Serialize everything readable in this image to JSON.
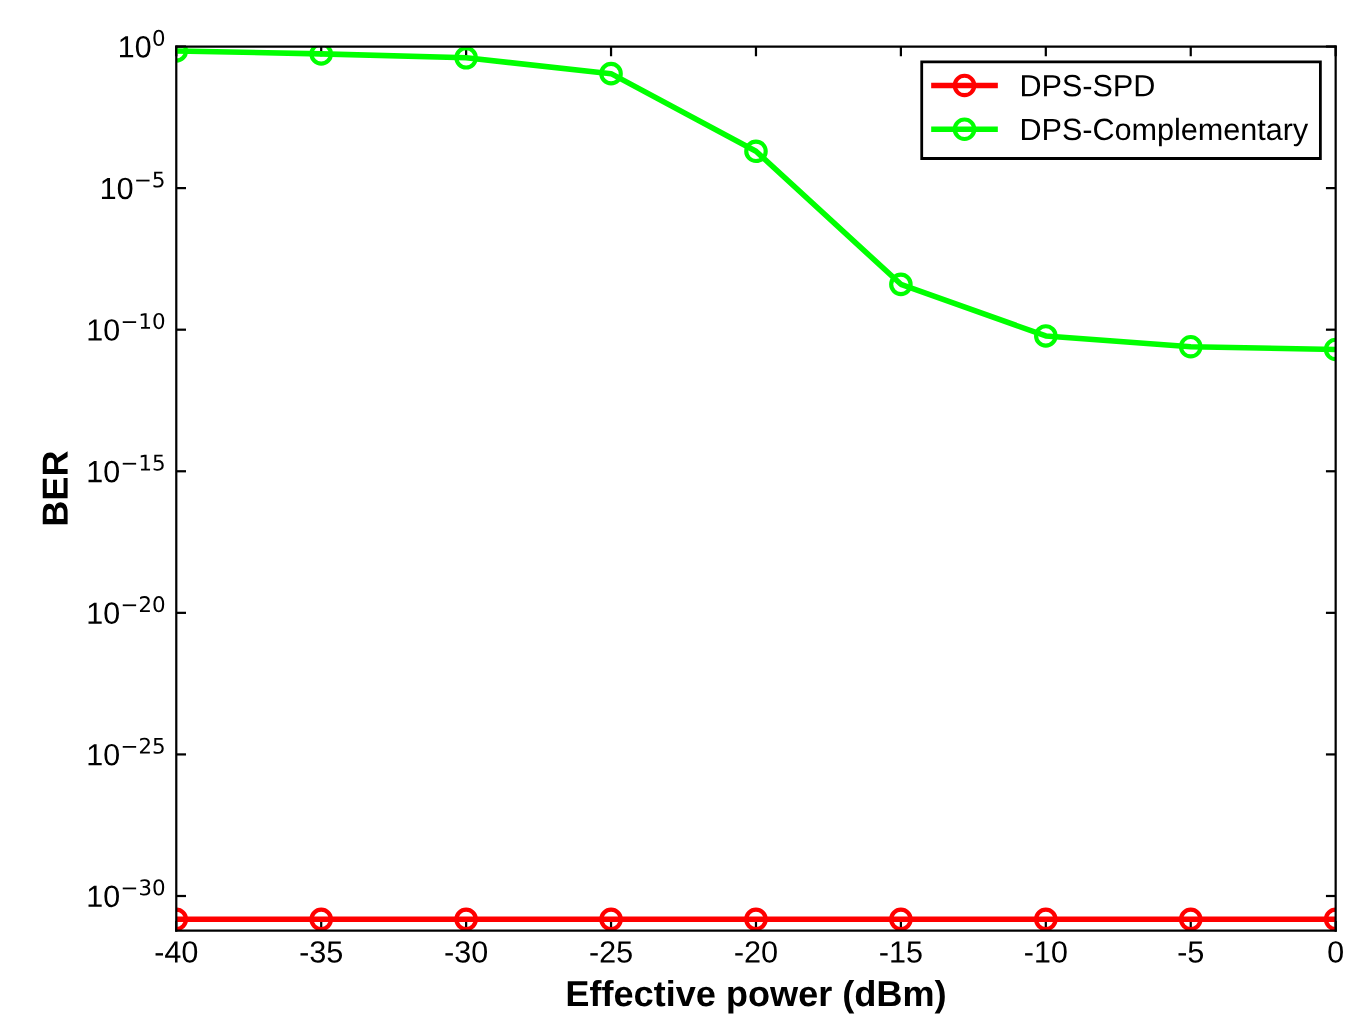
{
  "chart_data": {
    "type": "line",
    "xlabel": "Effective power (dBm)",
    "ylabel": "BER",
    "x": [
      -40,
      -35,
      -30,
      -25,
      -20,
      -15,
      -10,
      -5,
      0
    ],
    "series": [
      {
        "name": "DPS-SPD",
        "color": "#ff0000",
        "values": [
          1.5e-31,
          1.5e-31,
          1.5e-31,
          1.5e-31,
          1.5e-31,
          1.5e-31,
          1.5e-31,
          1.5e-31,
          1.5e-31
        ]
      },
      {
        "name": "DPS-Complementary",
        "color": "#00ff00",
        "values": [
          0.7,
          0.55,
          0.4,
          0.11,
          0.0002,
          4e-09,
          6e-11,
          2.5e-11,
          2e-11
        ]
      }
    ],
    "log": "y",
    "xlim": [
      -40,
      0
    ],
    "ylim": [
      6e-32,
      1
    ],
    "xticks": [
      -40,
      -35,
      -30,
      -25,
      -20,
      -15,
      -10,
      -5,
      0
    ],
    "yticks": [
      {
        "value": 1e-30,
        "label": "10$^{−30}$"
      },
      {
        "value": 1e-25,
        "label": "10$^{−25}$"
      },
      {
        "value": 1e-20,
        "label": "10$^{−20}$"
      },
      {
        "value": 1e-15,
        "label": "10$^{−15}$"
      },
      {
        "value": 1e-10,
        "label": "10$^{−10}$"
      },
      {
        "value": 1e-05,
        "label": "10$^{−5}$"
      },
      {
        "value": 1,
        "label": "10$^{0}$"
      }
    ],
    "grid": false,
    "legend": "top right",
    "marker": "circle",
    "line_style": "solid"
  }
}
